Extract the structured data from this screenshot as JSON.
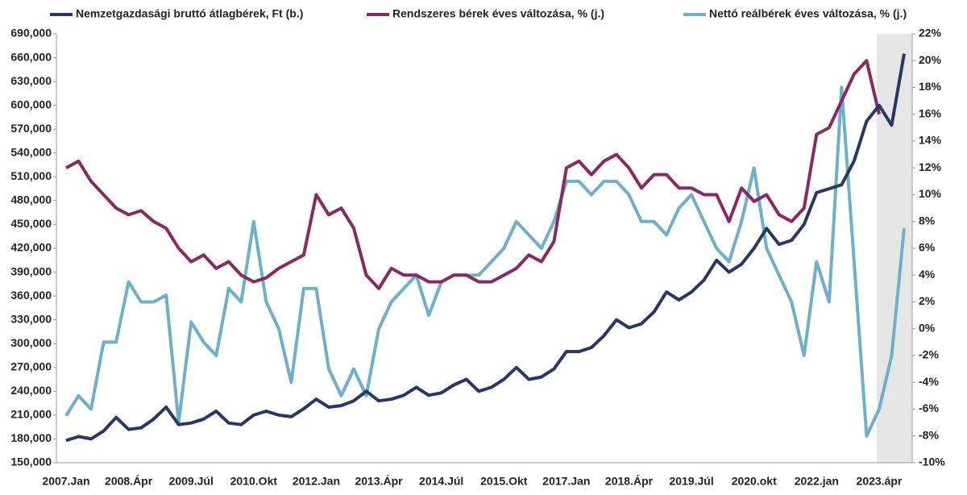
{
  "chart_data": {
    "type": "line",
    "categories": [
      "2007.Jan",
      null,
      null,
      null,
      null,
      "2008.Ápr",
      null,
      null,
      null,
      null,
      "2009.Júl",
      null,
      null,
      null,
      null,
      "2010.Okt",
      null,
      null,
      null,
      null,
      "2012.Jan",
      null,
      null,
      null,
      null,
      "2013.Ápr",
      null,
      null,
      null,
      null,
      "2014.Júl",
      null,
      null,
      null,
      null,
      "2015.Okt",
      null,
      null,
      null,
      null,
      "2017.Jan",
      null,
      null,
      null,
      null,
      "2018.Ápr",
      null,
      null,
      null,
      null,
      "2019.Júl",
      null,
      null,
      null,
      null,
      "2020.okt",
      null,
      null,
      null,
      null,
      "2022.jan",
      null,
      null,
      null,
      null,
      "2023.ápr",
      null,
      null
    ],
    "ylim": [
      150000,
      690000
    ],
    "yticks": [
      {
        "value": 150000,
        "label": "150,000"
      },
      {
        "value": 180000,
        "label": "180,000"
      },
      {
        "value": 210000,
        "label": "210,000"
      },
      {
        "value": 240000,
        "label": "240,000"
      },
      {
        "value": 270000,
        "label": "270,000"
      },
      {
        "value": 300000,
        "label": "300,000"
      },
      {
        "value": 330000,
        "label": "330,000"
      },
      {
        "value": 360000,
        "label": "360,000"
      },
      {
        "value": 390000,
        "label": "390,000"
      },
      {
        "value": 420000,
        "label": "420,000"
      },
      {
        "value": 450000,
        "label": "450,000"
      },
      {
        "value": 480000,
        "label": "480,000"
      },
      {
        "value": 510000,
        "label": "510,000"
      },
      {
        "value": 540000,
        "label": "540,000"
      },
      {
        "value": 570000,
        "label": "570,000"
      },
      {
        "value": 600000,
        "label": "600,000"
      },
      {
        "value": 630000,
        "label": "630,000"
      },
      {
        "value": 660000,
        "label": "660,000"
      },
      {
        "value": 690000,
        "label": "690,000"
      }
    ],
    "y2lim": [
      -10,
      22
    ],
    "y2ticks": [
      {
        "value": -10,
        "label": "-10%"
      },
      {
        "value": -8,
        "label": "-8%"
      },
      {
        "value": -6,
        "label": "-6%"
      },
      {
        "value": -4,
        "label": "-4%"
      },
      {
        "value": -2,
        "label": "-2%"
      },
      {
        "value": 0,
        "label": "0%"
      },
      {
        "value": 2,
        "label": "2%"
      },
      {
        "value": 4,
        "label": "4%"
      },
      {
        "value": 6,
        "label": "6%"
      },
      {
        "value": 8,
        "label": "8%"
      },
      {
        "value": 10,
        "label": "10%"
      },
      {
        "value": 12,
        "label": "12%"
      },
      {
        "value": 14,
        "label": "14%"
      },
      {
        "value": 16,
        "label": "16%"
      },
      {
        "value": 18,
        "label": "18%"
      },
      {
        "value": 20,
        "label": "20%"
      },
      {
        "value": 22,
        "label": "22%"
      }
    ],
    "grid": false,
    "series": [
      {
        "name": "Nemzetgazdasági bruttó átlagbérek, Ft (b.)",
        "color": "#283763",
        "axis": "y",
        "values": [
          178000,
          183000,
          180000,
          190000,
          207000,
          192000,
          194000,
          205000,
          220000,
          198000,
          200000,
          205000,
          215000,
          200000,
          198000,
          210000,
          215000,
          210000,
          208000,
          218000,
          230000,
          220000,
          222000,
          228000,
          240000,
          228000,
          230000,
          235000,
          245000,
          235000,
          238000,
          248000,
          255000,
          240000,
          245000,
          255000,
          270000,
          255000,
          258000,
          268000,
          290000,
          290000,
          295000,
          310000,
          330000,
          320000,
          325000,
          340000,
          365000,
          355000,
          365000,
          380000,
          405000,
          390000,
          400000,
          420000,
          445000,
          425000,
          430000,
          450000,
          490000,
          495000,
          500000,
          530000,
          580000,
          600000,
          575000,
          665000
        ]
      },
      {
        "name": "Rendszeres bérek éves változása, % (j.)",
        "color": "#8a2766",
        "axis": "y2",
        "values": [
          12.0,
          12.5,
          11.0,
          10.0,
          9.0,
          8.5,
          8.8,
          8.0,
          7.5,
          6.0,
          5.0,
          5.5,
          4.5,
          5.0,
          4.0,
          3.5,
          3.8,
          4.5,
          5.0,
          5.5,
          10.0,
          8.5,
          9.0,
          7.5,
          4.0,
          3.0,
          4.5,
          4.0,
          4.0,
          3.5,
          3.5,
          4.0,
          4.0,
          3.5,
          3.5,
          4.0,
          4.5,
          5.5,
          5.0,
          6.5,
          12.0,
          12.5,
          11.5,
          12.5,
          13.0,
          12.0,
          10.5,
          11.5,
          11.5,
          10.5,
          10.5,
          10.0,
          10.0,
          8.0,
          10.5,
          9.5,
          10.0,
          8.5,
          8.0,
          9.0,
          14.5,
          15.0,
          17.0,
          19.0,
          20.0,
          16.0,
          null,
          null
        ]
      },
      {
        "name": "Nettó reálbérek éves változása, % (j.)",
        "color": "#6db0cb",
        "axis": "y2",
        "values": [
          -6.5,
          -5,
          -6,
          -1,
          -1,
          3.5,
          2,
          2,
          2.5,
          -7,
          0.5,
          -1,
          -2,
          3,
          2,
          8,
          2,
          0,
          -4,
          3,
          3,
          -3,
          -5,
          -3,
          -5,
          0,
          2,
          3,
          4,
          1,
          3.5,
          4,
          4,
          4,
          5,
          6,
          8,
          7,
          6,
          8,
          11,
          11,
          10,
          11,
          11,
          10,
          8,
          8,
          7,
          9,
          10,
          8,
          6,
          5,
          8,
          12,
          6,
          4,
          2,
          -2,
          5,
          2,
          18,
          5,
          -8,
          -6,
          -2,
          7.5
        ]
      }
    ]
  }
}
